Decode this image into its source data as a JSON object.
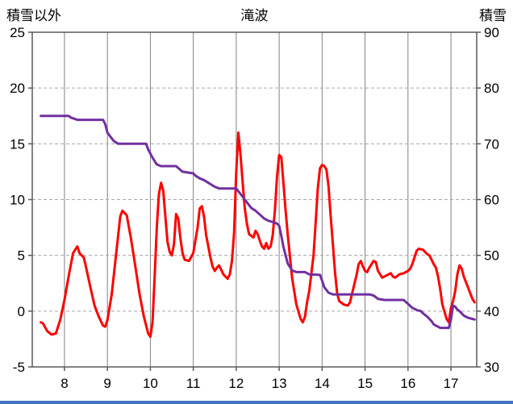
{
  "chart_data": {
    "type": "line",
    "title": "滝波",
    "left_axis_title": "積雪以外",
    "right_axis_title": "積雪",
    "x_range": [
      7.25,
      17.6
    ],
    "x_ticks": [
      8,
      9,
      10,
      11,
      12,
      13,
      14,
      15,
      16,
      17
    ],
    "left_axis": {
      "range": [
        -5,
        25
      ],
      "ticks": [
        -5,
        0,
        5,
        10,
        15,
        20,
        25
      ]
    },
    "right_axis": {
      "range": [
        30,
        90
      ],
      "ticks": [
        30,
        40,
        50,
        60,
        70,
        80,
        90
      ]
    },
    "grid": true,
    "legend": "none",
    "colors": {
      "red_series": "#ff0000",
      "purple_series": "#7030a0",
      "grid_vertical": "#808080",
      "grid_horizontal": "#a6a6a6",
      "border": "#595959",
      "bottom_bar": "#4472c4",
      "text": "#000000"
    },
    "series": [
      {
        "name": "積雪以外",
        "axis": "left",
        "color": "#ff0000",
        "points": [
          [
            7.45,
            -1.0
          ],
          [
            7.5,
            -1.1
          ],
          [
            7.6,
            -1.8
          ],
          [
            7.7,
            -2.1
          ],
          [
            7.8,
            -2.0
          ],
          [
            7.9,
            -0.8
          ],
          [
            8.0,
            1.0
          ],
          [
            8.1,
            3.2
          ],
          [
            8.2,
            5.2
          ],
          [
            8.3,
            5.8
          ],
          [
            8.35,
            5.2
          ],
          [
            8.45,
            4.8
          ],
          [
            8.5,
            4.0
          ],
          [
            8.6,
            2.2
          ],
          [
            8.7,
            0.5
          ],
          [
            8.8,
            -0.5
          ],
          [
            8.9,
            -1.3
          ],
          [
            8.95,
            -1.4
          ],
          [
            9.0,
            -0.8
          ],
          [
            9.1,
            1.5
          ],
          [
            9.2,
            5.0
          ],
          [
            9.3,
            8.5
          ],
          [
            9.35,
            9.0
          ],
          [
            9.45,
            8.6
          ],
          [
            9.55,
            6.5
          ],
          [
            9.65,
            4.0
          ],
          [
            9.75,
            1.5
          ],
          [
            9.85,
            -0.5
          ],
          [
            9.95,
            -2.0
          ],
          [
            10.0,
            -2.3
          ],
          [
            10.05,
            -1.0
          ],
          [
            10.1,
            3.0
          ],
          [
            10.15,
            7.5
          ],
          [
            10.2,
            10.5
          ],
          [
            10.25,
            11.5
          ],
          [
            10.3,
            10.8
          ],
          [
            10.35,
            8.5
          ],
          [
            10.4,
            6.2
          ],
          [
            10.45,
            5.3
          ],
          [
            10.5,
            5.0
          ],
          [
            10.55,
            6.0
          ],
          [
            10.6,
            8.7
          ],
          [
            10.65,
            8.3
          ],
          [
            10.7,
            6.5
          ],
          [
            10.75,
            5.2
          ],
          [
            10.8,
            4.6
          ],
          [
            10.9,
            4.5
          ],
          [
            11.0,
            5.2
          ],
          [
            11.1,
            7.5
          ],
          [
            11.15,
            9.2
          ],
          [
            11.2,
            9.4
          ],
          [
            11.25,
            8.5
          ],
          [
            11.3,
            6.8
          ],
          [
            11.4,
            4.8
          ],
          [
            11.45,
            4.0
          ],
          [
            11.5,
            3.6
          ],
          [
            11.55,
            3.9
          ],
          [
            11.6,
            4.1
          ],
          [
            11.7,
            3.3
          ],
          [
            11.8,
            2.9
          ],
          [
            11.85,
            3.3
          ],
          [
            11.9,
            4.5
          ],
          [
            11.95,
            7.0
          ],
          [
            12.0,
            12.5
          ],
          [
            12.05,
            16.0
          ],
          [
            12.1,
            14.0
          ],
          [
            12.15,
            11.5
          ],
          [
            12.2,
            9.2
          ],
          [
            12.25,
            7.8
          ],
          [
            12.3,
            6.9
          ],
          [
            12.4,
            6.6
          ],
          [
            12.45,
            7.2
          ],
          [
            12.5,
            6.9
          ],
          [
            12.55,
            6.3
          ],
          [
            12.6,
            5.8
          ],
          [
            12.65,
            5.6
          ],
          [
            12.7,
            6.1
          ],
          [
            12.75,
            5.6
          ],
          [
            12.8,
            5.8
          ],
          [
            12.85,
            6.8
          ],
          [
            12.9,
            9.0
          ],
          [
            12.95,
            12.0
          ],
          [
            13.0,
            14.0
          ],
          [
            13.05,
            13.8
          ],
          [
            13.1,
            11.5
          ],
          [
            13.15,
            9.0
          ],
          [
            13.2,
            6.8
          ],
          [
            13.3,
            3.0
          ],
          [
            13.4,
            0.6
          ],
          [
            13.5,
            -0.7
          ],
          [
            13.55,
            -1.0
          ],
          [
            13.6,
            -0.5
          ],
          [
            13.65,
            0.8
          ],
          [
            13.7,
            1.8
          ],
          [
            13.8,
            5.0
          ],
          [
            13.85,
            8.0
          ],
          [
            13.9,
            11.0
          ],
          [
            13.95,
            12.8
          ],
          [
            14.0,
            13.1
          ],
          [
            14.05,
            13.0
          ],
          [
            14.1,
            12.7
          ],
          [
            14.15,
            11.2
          ],
          [
            14.2,
            8.5
          ],
          [
            14.25,
            6.0
          ],
          [
            14.3,
            3.5
          ],
          [
            14.35,
            1.6
          ],
          [
            14.4,
            0.9
          ],
          [
            14.5,
            0.6
          ],
          [
            14.6,
            0.5
          ],
          [
            14.65,
            0.8
          ],
          [
            14.7,
            1.6
          ],
          [
            14.8,
            3.2
          ],
          [
            14.85,
            4.2
          ],
          [
            14.9,
            4.5
          ],
          [
            14.95,
            4.0
          ],
          [
            15.0,
            3.6
          ],
          [
            15.05,
            3.5
          ],
          [
            15.1,
            3.9
          ],
          [
            15.2,
            4.5
          ],
          [
            15.25,
            4.4
          ],
          [
            15.3,
            3.6
          ],
          [
            15.4,
            3.0
          ],
          [
            15.5,
            3.2
          ],
          [
            15.6,
            3.4
          ],
          [
            15.65,
            3.1
          ],
          [
            15.7,
            3.0
          ],
          [
            15.8,
            3.3
          ],
          [
            15.9,
            3.4
          ],
          [
            16.0,
            3.6
          ],
          [
            16.05,
            3.8
          ],
          [
            16.1,
            4.2
          ],
          [
            16.2,
            5.4
          ],
          [
            16.25,
            5.6
          ],
          [
            16.35,
            5.5
          ],
          [
            16.45,
            5.1
          ],
          [
            16.5,
            5.0
          ],
          [
            16.6,
            4.2
          ],
          [
            16.65,
            3.9
          ],
          [
            16.7,
            3.1
          ],
          [
            16.75,
            2.0
          ],
          [
            16.8,
            0.6
          ],
          [
            16.9,
            -0.7
          ],
          [
            16.95,
            -1.0
          ],
          [
            17.0,
            0.3
          ],
          [
            17.05,
            0.9
          ],
          [
            17.1,
            1.8
          ],
          [
            17.15,
            3.3
          ],
          [
            17.2,
            4.1
          ],
          [
            17.25,
            3.8
          ],
          [
            17.3,
            3.1
          ],
          [
            17.35,
            2.6
          ],
          [
            17.4,
            2.1
          ],
          [
            17.45,
            1.6
          ],
          [
            17.5,
            1.1
          ],
          [
            17.55,
            0.8
          ]
        ]
      },
      {
        "name": "積雪",
        "axis": "right",
        "color": "#7030a0",
        "points": [
          [
            7.45,
            75
          ],
          [
            8.1,
            75
          ],
          [
            8.15,
            74.7
          ],
          [
            8.3,
            74.3
          ],
          [
            8.9,
            74.3
          ],
          [
            8.95,
            73.5
          ],
          [
            9.0,
            72
          ],
          [
            9.05,
            71.5
          ],
          [
            9.15,
            70.5
          ],
          [
            9.25,
            70
          ],
          [
            9.9,
            70
          ],
          [
            9.95,
            69
          ],
          [
            10.05,
            67.5
          ],
          [
            10.15,
            66.3
          ],
          [
            10.25,
            66
          ],
          [
            10.6,
            66
          ],
          [
            10.7,
            65.3
          ],
          [
            10.75,
            65
          ],
          [
            11.0,
            64.7
          ],
          [
            11.05,
            64.3
          ],
          [
            11.15,
            63.8
          ],
          [
            11.25,
            63.5
          ],
          [
            11.35,
            63
          ],
          [
            11.5,
            62.3
          ],
          [
            11.6,
            62
          ],
          [
            12.0,
            62
          ],
          [
            12.05,
            61.5
          ],
          [
            12.15,
            60.5
          ],
          [
            12.25,
            59.5
          ],
          [
            12.35,
            58.5
          ],
          [
            12.45,
            58
          ],
          [
            12.55,
            57.3
          ],
          [
            12.65,
            56.6
          ],
          [
            12.75,
            56.2
          ],
          [
            12.85,
            56
          ],
          [
            12.95,
            55.7
          ],
          [
            13.0,
            55.3
          ],
          [
            13.05,
            53.5
          ],
          [
            13.1,
            51.5
          ],
          [
            13.2,
            48.5
          ],
          [
            13.3,
            47.3
          ],
          [
            13.4,
            47
          ],
          [
            13.6,
            47
          ],
          [
            13.7,
            46.6
          ],
          [
            13.95,
            46.5
          ],
          [
            14.0,
            45.5
          ],
          [
            14.05,
            44.3
          ],
          [
            14.15,
            43.3
          ],
          [
            14.25,
            43
          ],
          [
            15.1,
            43
          ],
          [
            15.2,
            42.8
          ],
          [
            15.3,
            42.2
          ],
          [
            15.45,
            42
          ],
          [
            15.9,
            42
          ],
          [
            16.0,
            41.3
          ],
          [
            16.1,
            40.6
          ],
          [
            16.2,
            40.2
          ],
          [
            16.3,
            40
          ],
          [
            16.35,
            39.6
          ],
          [
            16.45,
            39
          ],
          [
            16.5,
            38.6
          ],
          [
            16.55,
            38.2
          ],
          [
            16.6,
            37.6
          ],
          [
            16.7,
            37.2
          ],
          [
            16.75,
            37
          ],
          [
            16.95,
            37
          ],
          [
            17.0,
            38.5
          ],
          [
            17.05,
            41
          ],
          [
            17.1,
            40.8
          ],
          [
            17.15,
            40.3
          ],
          [
            17.2,
            40
          ],
          [
            17.3,
            39.2
          ],
          [
            17.4,
            38.8
          ],
          [
            17.5,
            38.6
          ],
          [
            17.55,
            38.5
          ]
        ]
      }
    ]
  }
}
